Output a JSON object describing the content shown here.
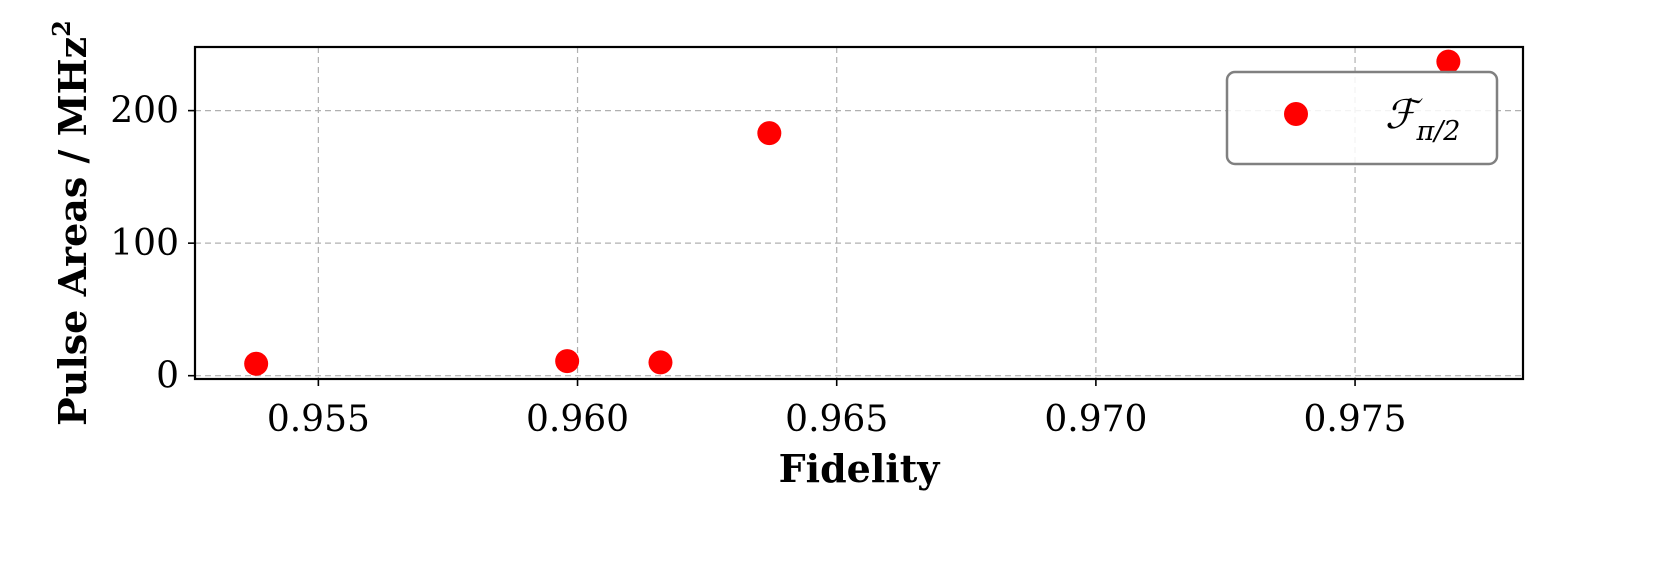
{
  "chart_data": {
    "type": "scatter",
    "xlabel": "Fidelity",
    "ylabel": "Pulse Areas / MHz²",
    "ylabel_main": "Pulse Areas / MHz",
    "ylabel_sup": "2",
    "xlim": [
      0.95262,
      0.97824
    ],
    "ylim": [
      -2.5,
      248
    ],
    "xticks": [
      0.955,
      0.96,
      0.965,
      0.97,
      0.975
    ],
    "xtick_labels": [
      "0.955",
      "0.960",
      "0.965",
      "0.970",
      "0.975"
    ],
    "yticks": [
      0,
      100,
      200
    ],
    "ytick_labels": [
      "0",
      "100",
      "200"
    ],
    "grid": true,
    "legend_position": "top-right",
    "series": [
      {
        "name": "ℱπ/2",
        "name_main": "ℱ",
        "name_sub": "π/2",
        "color": "#ff0000",
        "marker": "circle",
        "points": [
          {
            "x": 0.9538,
            "y": 9
          },
          {
            "x": 0.9598,
            "y": 11
          },
          {
            "x": 0.9616,
            "y": 10
          },
          {
            "x": 0.9637,
            "y": 183
          },
          {
            "x": 0.9768,
            "y": 237
          }
        ]
      }
    ]
  }
}
